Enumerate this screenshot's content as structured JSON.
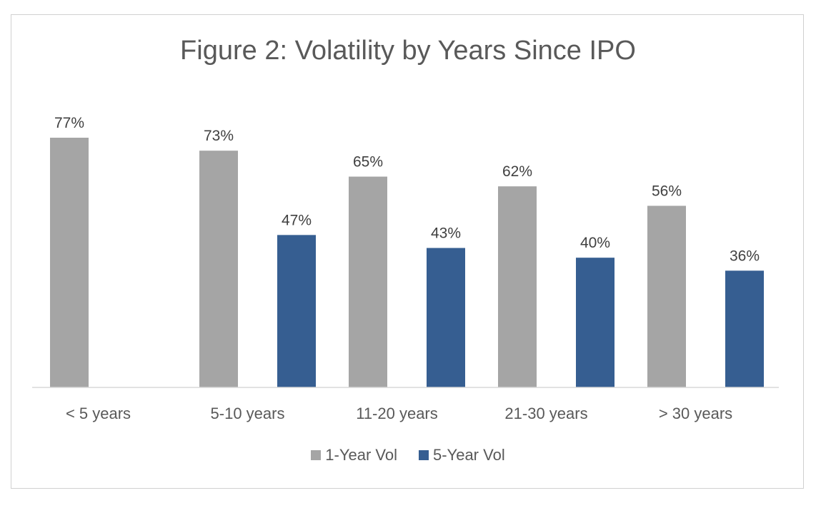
{
  "chart_data": {
    "type": "bar",
    "title": "Figure 2: Volatility by Years Since IPO",
    "categories": [
      "< 5 years",
      "5-10 years",
      "11-20 years",
      "21-30 years",
      "> 30 years"
    ],
    "series": [
      {
        "name": "1-Year Vol",
        "color": "#a5a5a5",
        "values": [
          77,
          73,
          65,
          62,
          56
        ],
        "labels": [
          "77%",
          "73%",
          "65%",
          "62%",
          "56%"
        ]
      },
      {
        "name": "5-Year Vol",
        "color": "#365e91",
        "values": [
          null,
          47,
          43,
          40,
          36
        ],
        "labels": [
          null,
          "47%",
          "43%",
          "40%",
          "36%"
        ]
      }
    ],
    "ylim": [
      0,
      77
    ],
    "grid": false,
    "legend_position": "bottom",
    "xlabel": "",
    "ylabel": ""
  }
}
